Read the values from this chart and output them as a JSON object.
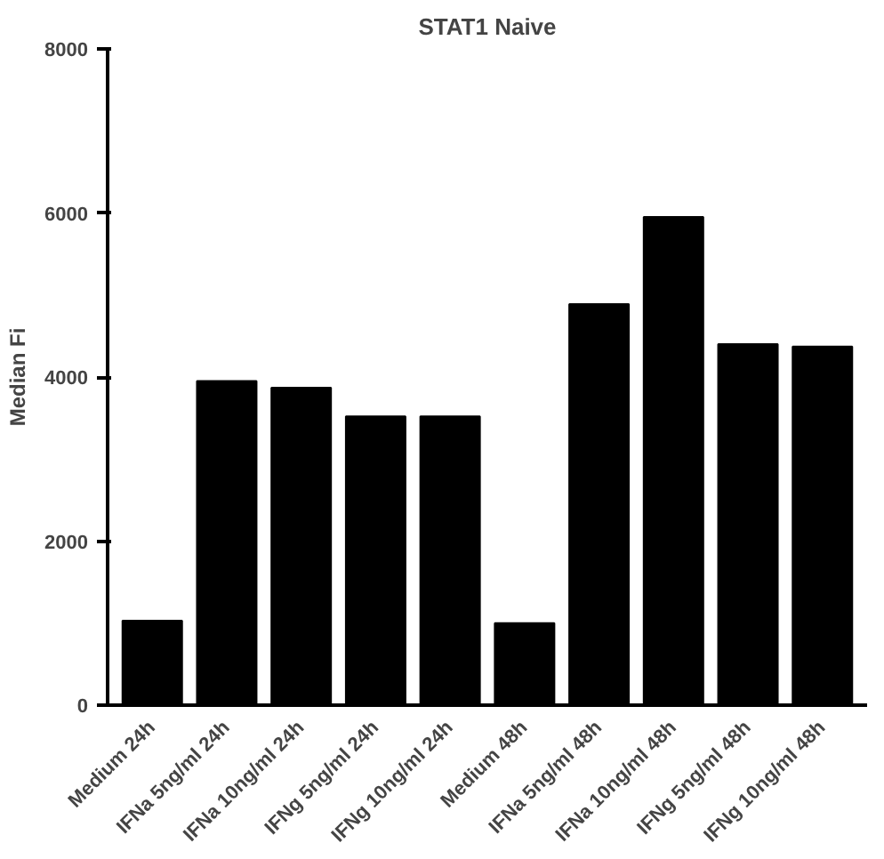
{
  "chart_data": {
    "type": "bar",
    "title": "STAT1 Naive",
    "ylabel": "Median Fi",
    "categories": [
      "Medium 24h",
      "IFNa 5ng/ml 24h",
      "IFNa 10ng/ml 24h",
      "IFNg 5ng/ml 24h",
      "IFNg 10ng/ml 24h",
      "Medium 48h",
      "IFNa 5ng/ml 48h",
      "IFNa 10ng/ml 48h",
      "IFNg 5ng/ml 48h",
      "IFNg 10ng/ml 48h"
    ],
    "values": [
      1030,
      3950,
      3870,
      3520,
      3520,
      1000,
      4890,
      5950,
      4400,
      4370
    ],
    "color": "#000000",
    "ylim": [
      0,
      8000
    ],
    "yticks": [
      0,
      2000,
      4000,
      6000,
      8000
    ],
    "grid": false
  }
}
